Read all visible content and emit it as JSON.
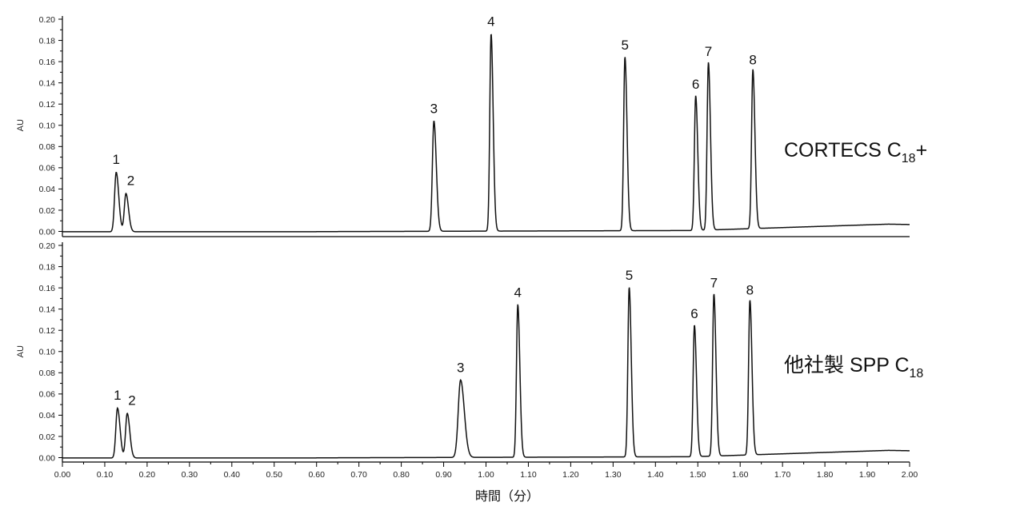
{
  "chart_data": {
    "type": "line",
    "xlabel": "時間（分）",
    "xlim": [
      0.0,
      2.0
    ],
    "x_ticks": [
      "0.00",
      "0.10",
      "0.20",
      "0.30",
      "0.40",
      "0.50",
      "0.60",
      "0.70",
      "0.80",
      "0.90",
      "1.00",
      "1.10",
      "1.20",
      "1.30",
      "1.40",
      "1.50",
      "1.60",
      "1.70",
      "1.80",
      "1.90",
      "2.00"
    ],
    "panels": [
      {
        "ylabel": "AU",
        "ylim": [
          0.0,
          0.2
        ],
        "y_ticks": [
          "0.00",
          "0.02",
          "0.04",
          "0.06",
          "0.08",
          "0.10",
          "0.12",
          "0.14",
          "0.16",
          "0.18",
          "0.20"
        ],
        "column_name": "CORTECS C",
        "column_sub": "18",
        "column_suffix": "+",
        "baseline": 0.0,
        "peaks": [
          {
            "label": "1",
            "rt": 0.127,
            "height": 0.056
          },
          {
            "label": "2",
            "rt": 0.15,
            "height": 0.036
          },
          {
            "label": "3",
            "rt": 0.877,
            "height": 0.104
          },
          {
            "label": "4",
            "rt": 1.012,
            "height": 0.186
          },
          {
            "label": "5",
            "rt": 1.328,
            "height": 0.164
          },
          {
            "label": "6",
            "rt": 1.495,
            "height": 0.127
          },
          {
            "label": "7",
            "rt": 1.525,
            "height": 0.158
          },
          {
            "label": "8",
            "rt": 1.63,
            "height": 0.15
          }
        ]
      },
      {
        "ylabel": "AU",
        "ylim": [
          0.0,
          0.2
        ],
        "y_ticks": [
          "0.00",
          "0.02",
          "0.04",
          "0.06",
          "0.08",
          "0.10",
          "0.12",
          "0.14",
          "0.16",
          "0.18",
          "0.20"
        ],
        "column_name": "他社製 SPP C",
        "column_sub": "18",
        "column_suffix": "",
        "baseline": 0.0,
        "peaks": [
          {
            "label": "1",
            "rt": 0.13,
            "height": 0.047
          },
          {
            "label": "2",
            "rt": 0.153,
            "height": 0.042
          },
          {
            "label": "3",
            "rt": 0.94,
            "height": 0.073
          },
          {
            "label": "4",
            "rt": 1.075,
            "height": 0.144
          },
          {
            "label": "5",
            "rt": 1.338,
            "height": 0.16
          },
          {
            "label": "6",
            "rt": 1.492,
            "height": 0.124
          },
          {
            "label": "7",
            "rt": 1.538,
            "height": 0.153
          },
          {
            "label": "8",
            "rt": 1.623,
            "height": 0.146
          }
        ]
      }
    ]
  }
}
